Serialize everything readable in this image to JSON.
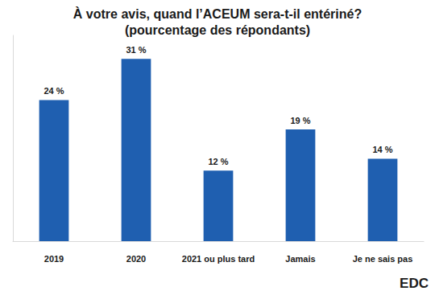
{
  "chart_data": {
    "type": "bar",
    "title": "À votre avis, quand l’ACEUM sera-t-il entériné?",
    "subtitle": "(pourcentage des répondants)",
    "categories": [
      "2019",
      "2020",
      "2021 ou plus tard",
      "Jamais",
      "Je ne sais pas"
    ],
    "values": [
      24,
      31,
      12,
      19,
      14
    ],
    "value_labels": [
      "24 %",
      "31 %",
      "12 %",
      "19 %",
      "14 %"
    ],
    "color": "#1f5fb0",
    "ylim": [
      0,
      35
    ],
    "grid": false,
    "data_labels": true,
    "tick_labels": "x",
    "annotations": [
      "EDC"
    ]
  }
}
